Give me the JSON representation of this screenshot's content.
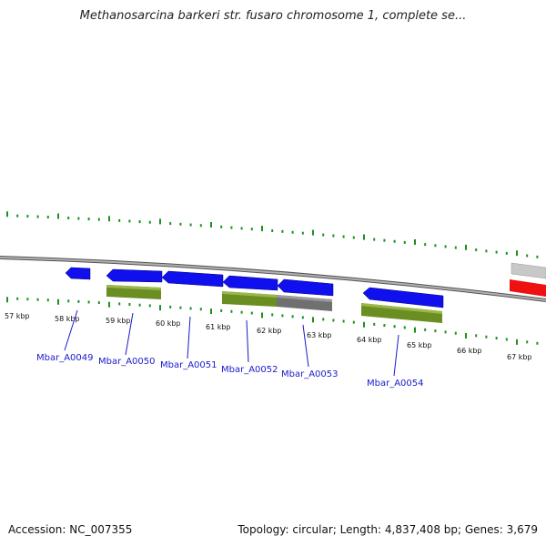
{
  "title": "Methanosarcina barkeri str. fusaro chromosome 1, complete se...",
  "footer": {
    "accession": "Accession: NC_007355",
    "summary": "Topology: circular; Length: 4,837,408 bp; Genes: 3,679"
  },
  "kbp_labels": [
    "57 kbp",
    "58 kbp",
    "59 kbp",
    "60 kbp",
    "61 kbp",
    "62 kbp",
    "63 kbp",
    "64 kbp",
    "65 kbp",
    "66 kbp",
    "67 kbp"
  ],
  "genes": [
    "Mbar_A0049",
    "Mbar_A0050",
    "Mbar_A0051",
    "Mbar_A0052",
    "Mbar_A0053",
    "Mbar_A0054"
  ],
  "colors": {
    "gene_blue": "#1010ee",
    "cds_green": "#6b8e23",
    "pseudo_gray": "#707070",
    "backbone": "#808080",
    "tick_green": "#1f8f1f",
    "label_blue": "#1a1acc",
    "edge_red": "#ee1111",
    "edge_silver": "#c0c0c0"
  }
}
